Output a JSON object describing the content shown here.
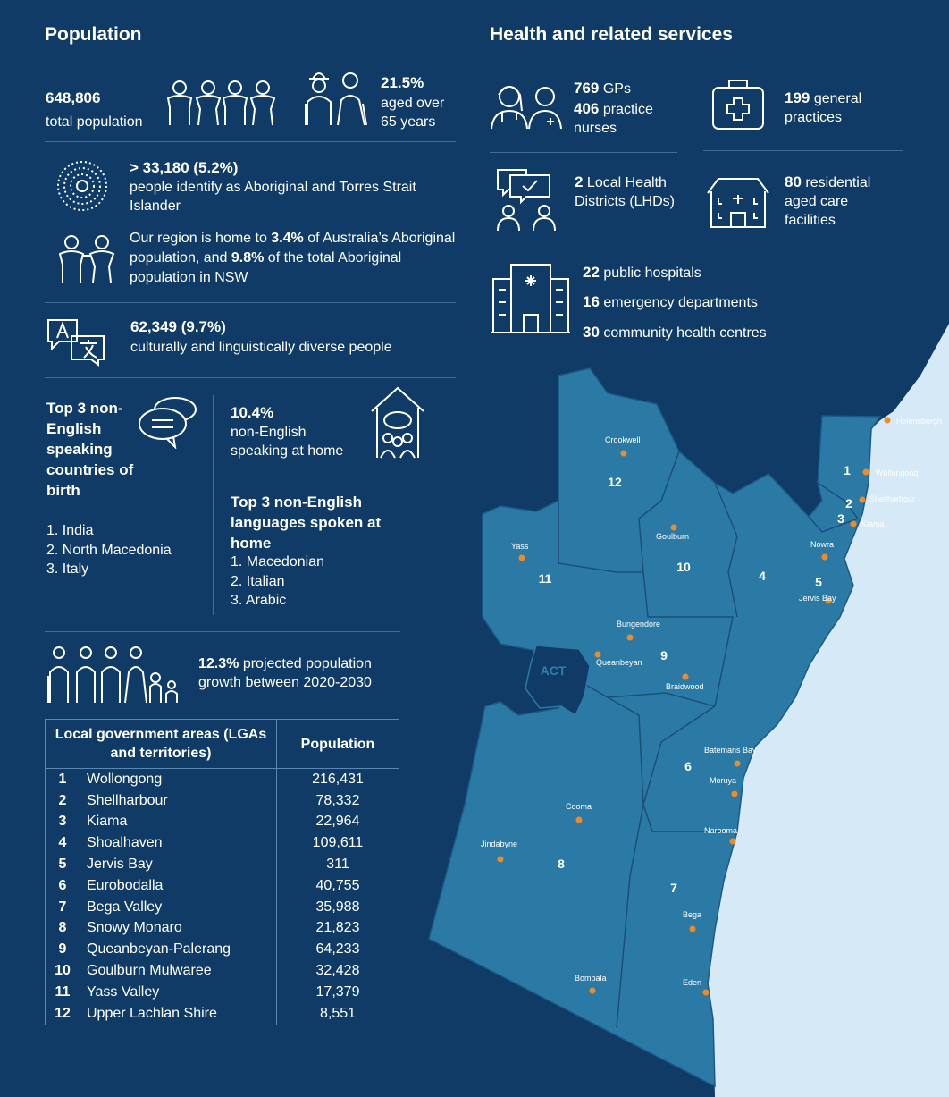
{
  "population": {
    "title": "Population",
    "total": {
      "value": "648,806",
      "label": "total population"
    },
    "aged": {
      "value": "21.5%",
      "label": "aged over 65 years"
    },
    "aboriginal": {
      "value": "> 33,180 (5.2%)",
      "label": "people identify as Aboriginal and Torres Strait Islander"
    },
    "region_share": [
      "Our region is home to ",
      "3.4%",
      " of Australia’s Aboriginal population, and ",
      "9.8%",
      " of the total Aboriginal population in NSW"
    ],
    "cald": {
      "value": "62,349 (9.7%)",
      "label": "culturally and linguistically diverse people"
    },
    "countries": {
      "title": "Top 3 non-English speaking countries of birth",
      "items": [
        "1. India",
        "2. North Macedonia",
        "3. Italy"
      ]
    },
    "home": {
      "value": "10.4%",
      "label": "non-English speaking at home"
    },
    "languages": {
      "title": "Top 3 non-English languages spoken at home",
      "items": [
        "1. Macedonian",
        "2. Italian",
        "3. Arabic"
      ]
    },
    "growth": {
      "value": "12.3%",
      "label": " projected population growth between 2020-2030"
    }
  },
  "lga_table": {
    "headers": [
      "Local government areas (LGAs and territories)",
      "Population"
    ],
    "rows": [
      [
        "1",
        "Wollongong",
        "216,431"
      ],
      [
        "2",
        "Shellharbour",
        "78,332"
      ],
      [
        "3",
        "Kiama",
        "22,964"
      ],
      [
        "4",
        "Shoalhaven",
        "109,611"
      ],
      [
        "5",
        "Jervis Bay",
        "311"
      ],
      [
        "6",
        "Eurobodalla",
        "40,755"
      ],
      [
        "7",
        "Bega Valley",
        "35,988"
      ],
      [
        "8",
        "Snowy Monaro",
        "21,823"
      ],
      [
        "9",
        "Queanbeyan-Palerang",
        "64,233"
      ],
      [
        "10",
        "Goulburn Mulwaree",
        "32,428"
      ],
      [
        "11",
        "Yass Valley",
        "17,379"
      ],
      [
        "12",
        "Upper Lachlan Shire",
        "8,551"
      ]
    ]
  },
  "health": {
    "title": "Health and related services",
    "gps": {
      "number": "769",
      "label": " GPs"
    },
    "nurses": {
      "number": "406",
      "label": " practice nurses"
    },
    "practices": {
      "number": "199",
      "label": " general practices"
    },
    "lhds": {
      "number": "2",
      "label": " Local Health Districts (LHDs)"
    },
    "aged_care": {
      "number": "80",
      "label": " residential aged care facilities"
    },
    "hospitals": {
      "number": "22",
      "label": " public hospitals"
    },
    "emergency": {
      "number": "16",
      "label": " emergency departments"
    },
    "community": {
      "number": "30",
      "label": " community health centres"
    }
  },
  "map": {
    "act": "ACT",
    "regions": [
      "1",
      "2",
      "3",
      "4",
      "5",
      "6",
      "7",
      "8",
      "9",
      "10",
      "11",
      "12"
    ],
    "towns": [
      "Helensburgh",
      "Wollongong",
      "Shellharbour",
      "Kiama",
      "Nowra",
      "Jervis Bay",
      "Crookwell",
      "Goulburn",
      "Yass",
      "Bungendore",
      "Queanbeyan",
      "Braidwood",
      "Batemans Bay",
      "Moruya",
      "Narooma",
      "Cooma",
      "Jindabyne",
      "Bega",
      "Bombala",
      "Eden"
    ]
  }
}
